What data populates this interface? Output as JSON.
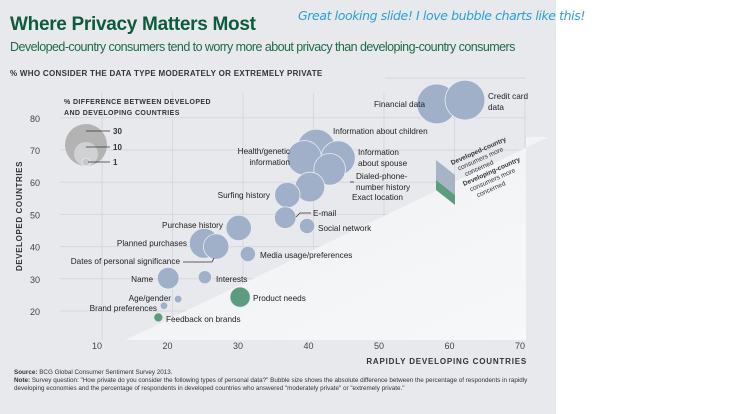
{
  "header": {
    "title": "Where Privacy Matters Most",
    "subtitle": "Developed-country consumers tend to worry more about privacy than developing-country consumers",
    "handwritten_note": "Great looking slide!  I love bubble charts like this!"
  },
  "footer": {
    "source_label": "Source:",
    "source_text": "BCG Global Consumer Sentiment Survey 2013.",
    "note_label": "Note:",
    "note_text": "Survey question: \"How private do you consider the following types of personal data?\" Bubble size shows the absolute difference between the percentage of respondents in rapidly developing economies and the percentage of respondents in developed countries who answered \"moderately private\" or \"extremely private.\""
  },
  "colors": {
    "developed": "#9fb0c8",
    "developing": "#5e9c80",
    "title": "#0e5a3c",
    "legend_bubble": "#b3b3b3"
  },
  "chart_data": {
    "type": "scatter",
    "title": "% WHO CONSIDER THE DATA TYPE MODERATELY OR EXTREMELY PRIVATE",
    "xlabel": "RAPIDLY DEVELOPING COUNTRIES",
    "ylabel": "DEVELOPED COUNTRIES",
    "xlim": [
      5,
      71
    ],
    "ylim": [
      11,
      86
    ],
    "xticks": [
      "10",
      "20",
      "30",
      "40",
      "50",
      "60",
      "70"
    ],
    "yticks": [
      "20",
      "30",
      "40",
      "50",
      "60",
      "70",
      "80"
    ],
    "grid": true,
    "size_legend": {
      "title_line1": "% DIFFERENCE BETWEEN DEVELOPED",
      "title_line2": "AND DEVELOPING COUNTRIES",
      "sizes": [
        30,
        10,
        1
      ],
      "labels": [
        "30",
        "10",
        "1"
      ]
    },
    "region_legend": [
      {
        "label_line1": "Developed-country",
        "label_line2": "consumers more",
        "label_line3": "concerned",
        "group": "developed"
      },
      {
        "label_line1": "Developing-country",
        "label_line2": "consumers more",
        "label_line3": "concerned",
        "group": "developing"
      }
    ],
    "points": [
      {
        "name": "Financial data",
        "x": 58.2,
        "y": 84.3,
        "size": 27,
        "group": "developed"
      },
      {
        "name": "Credit card data",
        "x": 62.2,
        "y": 85.5,
        "size": 27,
        "group": "developed"
      },
      {
        "name": "Information about children",
        "x": 41.1,
        "y": 70.5,
        "size": 25,
        "group": "developed"
      },
      {
        "name": "Health/genetic information",
        "x": 39.4,
        "y": 67.6,
        "size": 20,
        "group": "developed"
      },
      {
        "name": "Information about spouse",
        "x": 44.2,
        "y": 67.5,
        "size": 20,
        "group": "developed"
      },
      {
        "name": "Dialed-phone-number history",
        "x": 43.0,
        "y": 64.0,
        "size": 17,
        "group": "developed"
      },
      {
        "name": "Exact location",
        "x": 40.2,
        "y": 58.5,
        "size": 15,
        "group": "developed"
      },
      {
        "name": "Surfing history",
        "x": 37.0,
        "y": 56.0,
        "size": 11,
        "group": "developed"
      },
      {
        "name": "E-mail",
        "x": 36.7,
        "y": 49.0,
        "size": 8,
        "group": "developed"
      },
      {
        "name": "Social network",
        "x": 39.8,
        "y": 46.4,
        "size": 4,
        "group": "developed"
      },
      {
        "name": "Purchase history",
        "x": 30.1,
        "y": 45.8,
        "size": 11,
        "group": "developed"
      },
      {
        "name": "Planned purchases",
        "x": 25.2,
        "y": 41.0,
        "size": 15,
        "group": "developed"
      },
      {
        "name": "Dates of personal significance",
        "x": 26.9,
        "y": 40.0,
        "size": 11,
        "group": "developed"
      },
      {
        "name": "Media usage/preferences",
        "x": 31.4,
        "y": 37.7,
        "size": 4,
        "group": "developed"
      },
      {
        "name": "Name",
        "x": 20.1,
        "y": 30.2,
        "size": 8,
        "group": "developed"
      },
      {
        "name": "Interests",
        "x": 25.3,
        "y": 30.5,
        "size": 3,
        "group": "developed"
      },
      {
        "name": "Age/gender",
        "x": 21.5,
        "y": 23.7,
        "size": 1,
        "group": "developed"
      },
      {
        "name": "Brand preferences",
        "x": 19.5,
        "y": 21.6,
        "size": 1,
        "group": "developed"
      },
      {
        "name": "Feedback on brands",
        "x": 18.7,
        "y": 18.0,
        "size": 1.4,
        "group": "developing"
      },
      {
        "name": "Product needs",
        "x": 30.3,
        "y": 24.3,
        "size": 7,
        "group": "developing"
      }
    ]
  }
}
